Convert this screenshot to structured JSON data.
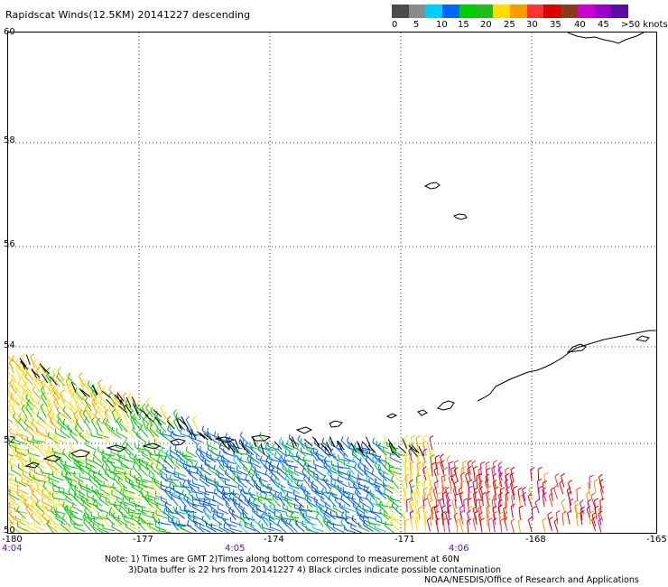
{
  "title": "Rapidscat Winds(12.5KM) 20141227 descending",
  "colorbar": {
    "colors": [
      "#4b4b4b",
      "#8a8a8a",
      "#00ccff",
      "#0066ff",
      "#00cc00",
      "#22bb22",
      "#ffdd00",
      "#ff9900",
      "#ff3333",
      "#dd0000",
      "#8b3a1e",
      "#cc00cc",
      "#9900cc",
      "#5a0ea0"
    ],
    "labels": [
      "0",
      "5",
      "10",
      "15",
      "20",
      "25",
      "30",
      "35",
      "40",
      "45",
      ">50 knots"
    ]
  },
  "latitude_labels": [
    "60",
    "58",
    "56",
    "54",
    "52",
    "50"
  ],
  "longitude_labels": [
    "-180",
    "-177",
    "-174",
    "-171",
    "-168",
    "-165"
  ],
  "time_labels": [
    "4:04",
    "4:05",
    "4:06"
  ],
  "notes": {
    "line1": "Note: 1) Times are GMT 2)Times along bottom correspond to measurement at 60N",
    "line2": "3)Data buffer is 22 hrs from 20141227 4) Black circles indicate possible contamination",
    "line3": "NOAA/NESDIS/Office of Research and Applications"
  },
  "map": {
    "lat_range": [
      50,
      60
    ],
    "lon_range": [
      -180,
      -165
    ],
    "grid": "dotted",
    "wind_speed_colors_knots": {
      "0-5": "#4b4b4b",
      "5-10": "#00ccff",
      "10-15": "#0066ff",
      "15-20": "#00cc00",
      "20-25": "#ffdd00",
      "25-30": "#ff9900",
      "30-35": "#dd0000",
      "35-40": "#8b3a1e",
      "40-45": "#cc00cc",
      "45-50": "#9900cc",
      ">50": "#5a0ea0"
    }
  }
}
